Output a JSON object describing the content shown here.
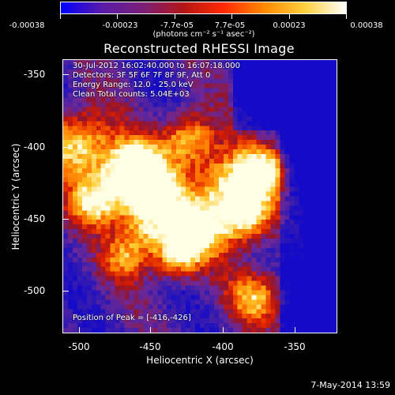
{
  "colorbar": {
    "labels": [
      "-0.00038",
      "-0.00023",
      "-7.7e-05",
      "7.7e-05",
      "0.00023",
      "0.00038"
    ],
    "units": "(photons cm⁻² s⁻¹ asec⁻²)",
    "colors": [
      "#0000ff",
      "#5a1aa8",
      "#7a1f7a",
      "#b21616",
      "#ff2a00",
      "#ff8a00",
      "#ffd040",
      "#ffffff"
    ]
  },
  "title": "Reconstructed RHESSI Image",
  "info": {
    "line1": "30-Jul-2012 16:02:40.000 to 16:07:18.000",
    "line2": "Detectors: 3F 5F 6F 7F 8F 9F, Att 0",
    "line3": "Energy Range: 12.0 - 25.0 keV",
    "line4": "Clean    Total counts: 5.04E+03"
  },
  "peak": "Position of Peak = [-416,-426]",
  "axes": {
    "xlabel": "Heliocentric X (arcsec)",
    "ylabel": "Heliocentric Y (arcsec)",
    "xticks": [
      "-500",
      "-450",
      "-400",
      "-350"
    ],
    "yticks": [
      "-350",
      "-400",
      "-450",
      "-500"
    ]
  },
  "timestamp": "7-May-2014 13:59"
}
